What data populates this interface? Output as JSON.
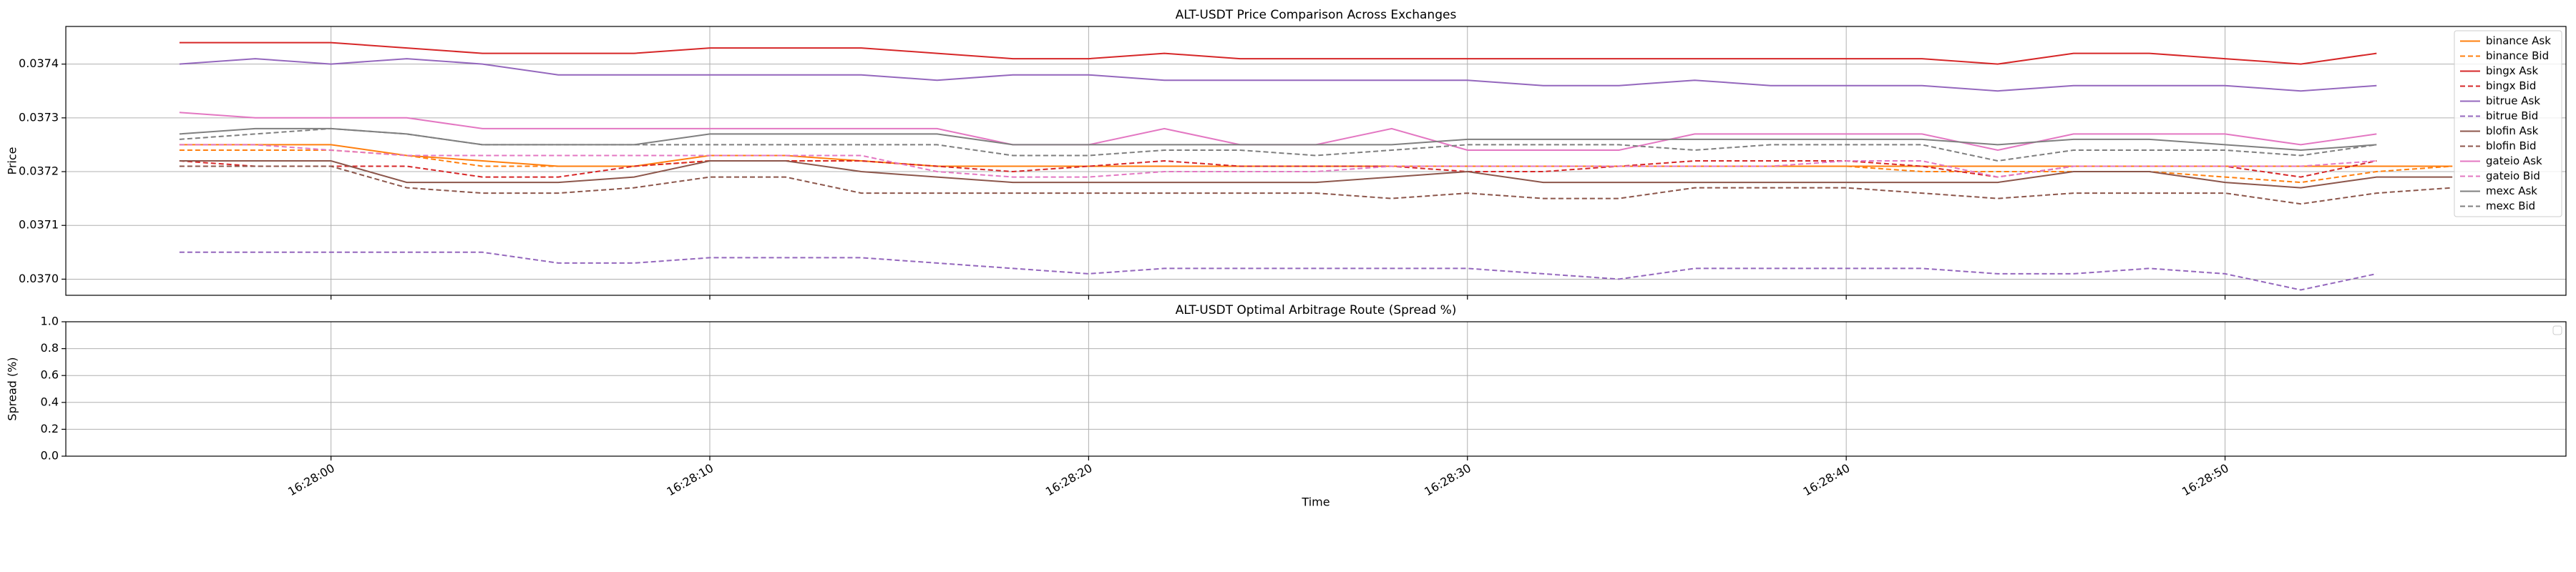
{
  "chart_data": [
    {
      "type": "line",
      "title": "ALT-USDT Price Comparison Across Exchanges",
      "ylabel": "Price",
      "x": [
        "16:27:56",
        "16:27:58",
        "16:28:00",
        "16:28:02",
        "16:28:04",
        "16:28:06",
        "16:28:08",
        "16:28:10",
        "16:28:12",
        "16:28:14",
        "16:28:16",
        "16:28:18",
        "16:28:20",
        "16:28:22",
        "16:28:24",
        "16:28:26",
        "16:28:28",
        "16:28:30",
        "16:28:32",
        "16:28:34",
        "16:28:36",
        "16:28:38",
        "16:28:40",
        "16:28:42",
        "16:28:44",
        "16:28:46",
        "16:28:48",
        "16:28:50",
        "16:28:52",
        "16:28:54",
        "16:28:56"
      ],
      "series": [
        {
          "name": "binance Ask",
          "color": "#ff7f0e",
          "linestyle": "solid",
          "values": [
            0.03725,
            0.03725,
            0.03725,
            0.03723,
            0.03722,
            0.03721,
            0.03721,
            0.03723,
            0.03723,
            0.03722,
            0.03721,
            0.03721,
            0.03721,
            0.03721,
            0.03721,
            0.03721,
            0.03721,
            0.03721,
            0.03721,
            0.03721,
            0.03721,
            0.03721,
            0.03721,
            0.03721,
            0.03721,
            0.03721,
            0.03721,
            0.03721,
            0.03721,
            0.03721,
            0.03721
          ]
        },
        {
          "name": "binance Bid",
          "color": "#ff7f0e",
          "linestyle": "dashed",
          "values": [
            0.03724,
            0.03724,
            0.03724,
            0.03723,
            0.03721,
            0.03721,
            0.03721,
            0.03722,
            0.03722,
            0.03722,
            0.03721,
            0.03721,
            0.03721,
            0.03721,
            0.03721,
            0.03721,
            0.03721,
            0.03721,
            0.03721,
            0.03721,
            0.03721,
            0.03721,
            0.03721,
            0.0372,
            0.0372,
            0.0372,
            0.0372,
            0.03719,
            0.03718,
            0.0372,
            0.03721
          ]
        },
        {
          "name": "bingx Ask",
          "color": "#d62728",
          "linestyle": "solid",
          "values": [
            0.03744,
            0.03744,
            0.03744,
            0.03743,
            0.03742,
            0.03742,
            0.03742,
            0.03743,
            0.03743,
            0.03743,
            0.03742,
            0.03741,
            0.03741,
            0.03742,
            0.03741,
            0.03741,
            0.03741,
            0.03741,
            0.03741,
            0.03741,
            0.03741,
            0.03741,
            0.03741,
            0.03741,
            0.0374,
            0.03742,
            0.03742,
            0.03741,
            0.0374,
            0.03742,
            null
          ]
        },
        {
          "name": "bingx Bid",
          "color": "#d62728",
          "linestyle": "dashed",
          "values": [
            0.03722,
            0.03721,
            0.03721,
            0.03721,
            0.03719,
            0.03719,
            0.03721,
            0.03722,
            0.03722,
            0.03722,
            0.03721,
            0.0372,
            0.03721,
            0.03722,
            0.03721,
            0.03721,
            0.03721,
            0.0372,
            0.0372,
            0.03721,
            0.03722,
            0.03722,
            0.03722,
            0.03721,
            0.03719,
            0.03721,
            0.03721,
            0.03721,
            0.03719,
            0.03722,
            null
          ]
        },
        {
          "name": "bitrue Ask",
          "color": "#9467bd",
          "linestyle": "solid",
          "values": [
            0.0374,
            0.03741,
            0.0374,
            0.03741,
            0.0374,
            0.03738,
            0.03738,
            0.03738,
            0.03738,
            0.03738,
            0.03737,
            0.03738,
            0.03738,
            0.03737,
            0.03737,
            0.03737,
            0.03737,
            0.03737,
            0.03736,
            0.03736,
            0.03737,
            0.03736,
            0.03736,
            0.03736,
            0.03735,
            0.03736,
            0.03736,
            0.03736,
            0.03735,
            0.03736,
            null
          ]
        },
        {
          "name": "bitrue Bid",
          "color": "#9467bd",
          "linestyle": "dashed",
          "values": [
            0.03705,
            0.03705,
            0.03705,
            0.03705,
            0.03705,
            0.03703,
            0.03703,
            0.03704,
            0.03704,
            0.03704,
            0.03703,
            0.03702,
            0.03701,
            0.03702,
            0.03702,
            0.03702,
            0.03702,
            0.03702,
            0.03701,
            0.037,
            0.03702,
            0.03702,
            0.03702,
            0.03702,
            0.03701,
            0.03701,
            0.03702,
            0.03701,
            0.03698,
            0.03701,
            null
          ]
        },
        {
          "name": "blofin Ask",
          "color": "#8c564b",
          "linestyle": "solid",
          "values": [
            0.03722,
            0.03722,
            0.03722,
            0.03718,
            0.03718,
            0.03718,
            0.03719,
            0.03722,
            0.03722,
            0.0372,
            0.03719,
            0.03718,
            0.03718,
            0.03718,
            0.03718,
            0.03718,
            0.03719,
            0.0372,
            0.03718,
            0.03718,
            0.03718,
            0.03718,
            0.03718,
            0.03718,
            0.03718,
            0.0372,
            0.0372,
            0.03718,
            0.03717,
            0.03719,
            0.03719
          ]
        },
        {
          "name": "blofin Bid",
          "color": "#8c564b",
          "linestyle": "dashed",
          "values": [
            0.03721,
            0.03721,
            0.03721,
            0.03717,
            0.03716,
            0.03716,
            0.03717,
            0.03719,
            0.03719,
            0.03716,
            0.03716,
            0.03716,
            0.03716,
            0.03716,
            0.03716,
            0.03716,
            0.03715,
            0.03716,
            0.03715,
            0.03715,
            0.03717,
            0.03717,
            0.03717,
            0.03716,
            0.03715,
            0.03716,
            0.03716,
            0.03716,
            0.03714,
            0.03716,
            0.03717
          ]
        },
        {
          "name": "gateio Ask",
          "color": "#e377c2",
          "linestyle": "solid",
          "values": [
            0.03731,
            0.0373,
            0.0373,
            0.0373,
            0.03728,
            0.03728,
            0.03728,
            0.03728,
            0.03728,
            0.03728,
            0.03728,
            0.03725,
            0.03725,
            0.03728,
            0.03725,
            0.03725,
            0.03728,
            0.03724,
            0.03724,
            0.03724,
            0.03727,
            0.03727,
            0.03727,
            0.03727,
            0.03724,
            0.03727,
            0.03727,
            0.03727,
            0.03725,
            0.03727,
            null
          ]
        },
        {
          "name": "gateio Bid",
          "color": "#e377c2",
          "linestyle": "dashed",
          "values": [
            0.03725,
            0.03725,
            0.03724,
            0.03723,
            0.03723,
            0.03723,
            0.03723,
            0.03723,
            0.03723,
            0.03723,
            0.0372,
            0.03719,
            0.03719,
            0.0372,
            0.0372,
            0.0372,
            0.03721,
            0.03721,
            0.03721,
            0.03721,
            0.03721,
            0.03721,
            0.03722,
            0.03722,
            0.03719,
            0.03721,
            0.03721,
            0.03721,
            0.03721,
            0.03722,
            null
          ]
        },
        {
          "name": "mexc Ask",
          "color": "#7f7f7f",
          "linestyle": "solid",
          "values": [
            0.03727,
            0.03728,
            0.03728,
            0.03727,
            0.03725,
            0.03725,
            0.03725,
            0.03727,
            0.03727,
            0.03727,
            0.03727,
            0.03725,
            0.03725,
            0.03725,
            0.03725,
            0.03725,
            0.03725,
            0.03726,
            0.03726,
            0.03726,
            0.03726,
            0.03726,
            0.03726,
            0.03726,
            0.03725,
            0.03726,
            0.03726,
            0.03725,
            0.03724,
            0.03725,
            null
          ]
        },
        {
          "name": "mexc Bid",
          "color": "#7f7f7f",
          "linestyle": "dashed",
          "values": [
            0.03726,
            0.03727,
            0.03728,
            0.03727,
            0.03725,
            0.03725,
            0.03725,
            0.03725,
            0.03725,
            0.03725,
            0.03725,
            0.03723,
            0.03723,
            0.03724,
            0.03724,
            0.03723,
            0.03724,
            0.03725,
            0.03725,
            0.03725,
            0.03724,
            0.03725,
            0.03725,
            0.03725,
            0.03722,
            0.03724,
            0.03724,
            0.03724,
            0.03723,
            0.03725,
            null
          ]
        }
      ],
      "xlim": [
        "16:27:53",
        "16:28:59"
      ],
      "xticks": [
        "16:28:00",
        "16:28:10",
        "16:28:20",
        "16:28:30",
        "16:28:40",
        "16:28:50"
      ],
      "ylim": [
        0.03697,
        0.03747
      ],
      "yticks": [
        {
          "value": 0.037,
          "label": "0.0370"
        },
        {
          "value": 0.0371,
          "label": "0.0371"
        },
        {
          "value": 0.0372,
          "label": "0.0372"
        },
        {
          "value": 0.0373,
          "label": "0.0373"
        },
        {
          "value": 0.0374,
          "label": "0.0374"
        }
      ],
      "grid": true,
      "legend": "upper right",
      "show_xtick_labels": false
    },
    {
      "type": "line",
      "title": "ALT-USDT Optimal Arbitrage Route (Spread %)",
      "ylabel": "Spread (%)",
      "xlabel": "Time",
      "series": [],
      "xlim": [
        "16:27:53",
        "16:28:59"
      ],
      "xticks": [
        "16:28:00",
        "16:28:10",
        "16:28:20",
        "16:28:30",
        "16:28:40",
        "16:28:50"
      ],
      "ylim": [
        0,
        1
      ],
      "yticks": [
        {
          "value": 0,
          "label": "0.0"
        },
        {
          "value": 0.2,
          "label": "0.2"
        },
        {
          "value": 0.4,
          "label": "0.4"
        },
        {
          "value": 0.6,
          "label": "0.6"
        },
        {
          "value": 0.8,
          "label": "0.8"
        },
        {
          "value": 1,
          "label": "1.0"
        }
      ],
      "grid": true,
      "legend": "upper right",
      "show_xtick_labels": true
    }
  ]
}
